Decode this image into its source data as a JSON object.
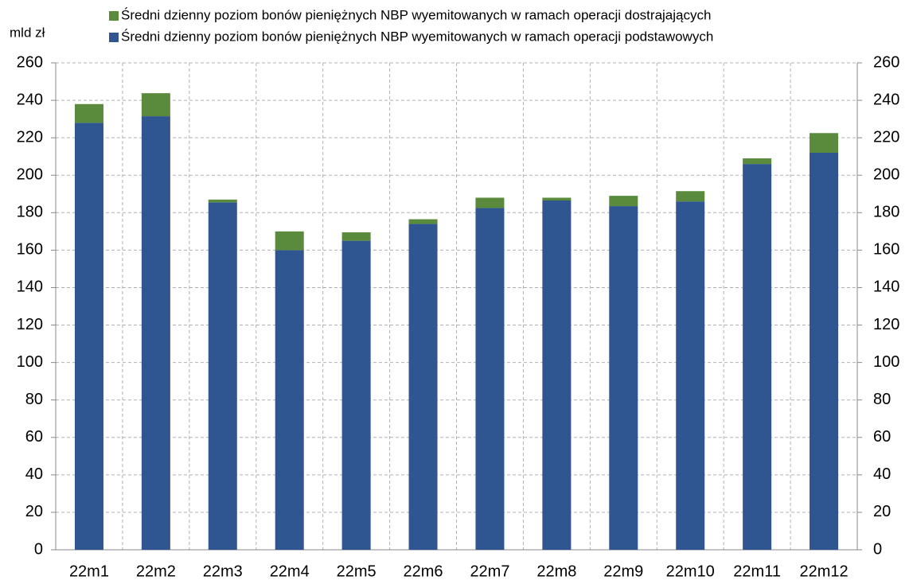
{
  "chart_data": {
    "type": "stacked_bar",
    "unit_label": "mld zł",
    "categories": [
      "22m1",
      "22m2",
      "22m3",
      "22m4",
      "22m5",
      "22m6",
      "22m7",
      "22m8",
      "22m9",
      "22m10",
      "22m11",
      "22m12"
    ],
    "series": [
      {
        "name": "Średni dzienny poziom bonów pieniężnych NBP wyemitowanych w ramach operacji podstawowych",
        "color": "#2f5690",
        "values": [
          228,
          231.5,
          185.5,
          160,
          165,
          174,
          182.5,
          186.5,
          183.5,
          186,
          206,
          212
        ]
      },
      {
        "name": "Średni dzienny poziom bonów pieniężnych NBP wyemitowanych w ramach operacji dostrajających",
        "color": "#5a8a3c",
        "values": [
          10,
          12.3,
          1.5,
          10,
          4.5,
          2.5,
          5.5,
          1.5,
          5.5,
          5.5,
          3,
          10.5
        ]
      }
    ],
    "ylim": [
      0,
      260
    ],
    "yticks": [
      0,
      20,
      40,
      60,
      80,
      100,
      120,
      140,
      160,
      180,
      200,
      220,
      240,
      260
    ],
    "y2lim": [
      0,
      260
    ],
    "y2ticks": [
      0,
      20,
      40,
      60,
      80,
      100,
      120,
      140,
      160,
      180,
      200,
      220,
      240,
      260
    ],
    "grid": true
  }
}
